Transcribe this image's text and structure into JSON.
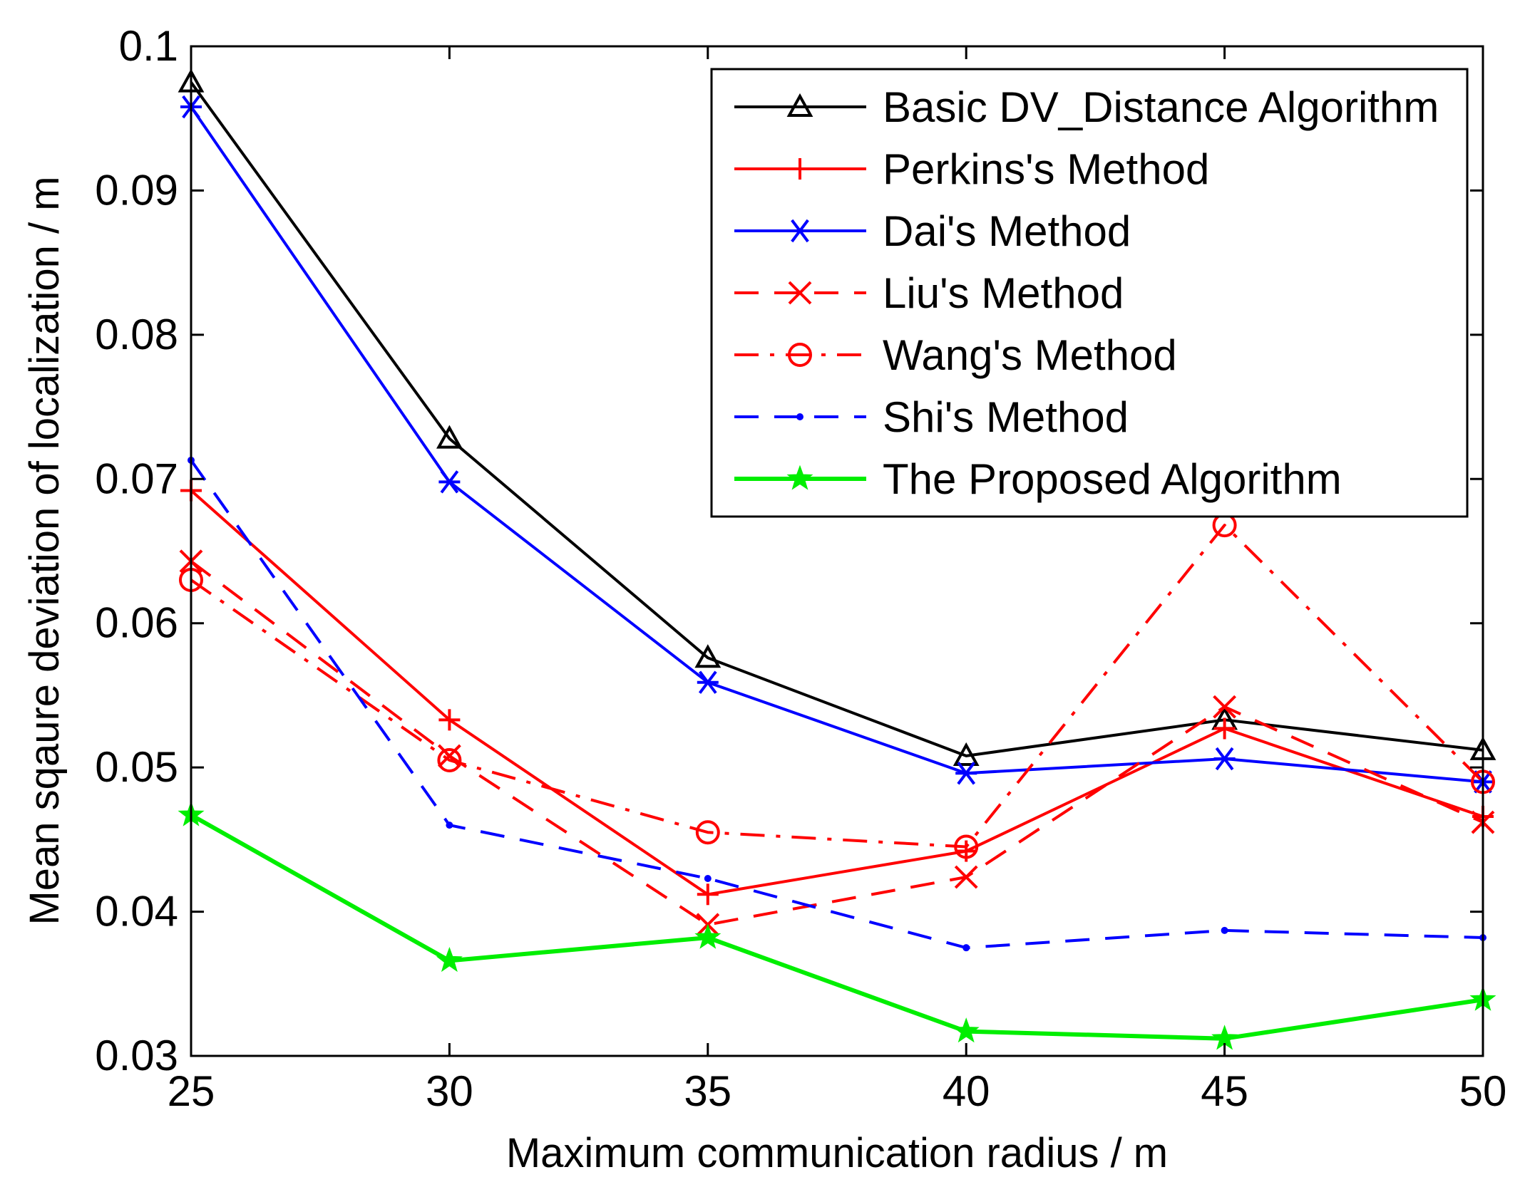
{
  "chart_data": {
    "type": "line",
    "title": "",
    "xlabel": "Maximum communication radius / m",
    "ylabel": "Mean sqaure deviation of localization / m",
    "x": [
      25,
      30,
      35,
      40,
      45,
      50
    ],
    "xlim": [
      25,
      50
    ],
    "ylim": [
      0.03,
      0.1
    ],
    "xticks": [
      25,
      30,
      35,
      40,
      45,
      50
    ],
    "xtick_labels": [
      "25",
      "30",
      "35",
      "40",
      "45",
      "50"
    ],
    "yticks": [
      0.03,
      0.04,
      0.05,
      0.06,
      0.07,
      0.08,
      0.09,
      0.1
    ],
    "ytick_labels": [
      "0.03",
      "0.04",
      "0.05",
      "0.06",
      "0.07",
      "0.08",
      "0.09",
      "0.1"
    ],
    "grid": false,
    "legend_position": "top-right",
    "series": [
      {
        "name": "Basic DV_Distance Algorithm",
        "color": "#000000",
        "dash": "solid",
        "marker": "triangle",
        "values": [
          0.0975,
          0.0728,
          0.0576,
          0.0508,
          0.0533,
          0.0512
        ]
      },
      {
        "name": "Perkins's Method",
        "color": "#ff0000",
        "dash": "solid",
        "marker": "plus",
        "values": [
          0.0692,
          0.0533,
          0.0412,
          0.0442,
          0.0527,
          0.0466
        ]
      },
      {
        "name": "Dai's Method",
        "color": "#0000ff",
        "dash": "solid",
        "marker": "asterisk",
        "values": [
          0.0958,
          0.0698,
          0.0559,
          0.0496,
          0.0506,
          0.049
        ]
      },
      {
        "name": "Liu's Method",
        "color": "#ff0000",
        "dash": "dashed",
        "marker": "x",
        "values": [
          0.0643,
          0.0508,
          0.0391,
          0.0424,
          0.0542,
          0.0462
        ]
      },
      {
        "name": "Wang's Method",
        "color": "#ff0000",
        "dash": "dashdot",
        "marker": "circle",
        "values": [
          0.063,
          0.0505,
          0.0455,
          0.0445,
          0.0668,
          0.049
        ]
      },
      {
        "name": "Shi's Method",
        "color": "#0000ff",
        "dash": "dashed",
        "marker": "point",
        "values": [
          0.0713,
          0.046,
          0.0423,
          0.0375,
          0.0387,
          0.0382
        ]
      },
      {
        "name": "The Proposed Algorithm",
        "color": "#00ee00",
        "dash": "solid",
        "marker": "pentagram",
        "values": [
          0.0467,
          0.0366,
          0.0382,
          0.0317,
          0.0312,
          0.0339
        ]
      }
    ]
  }
}
